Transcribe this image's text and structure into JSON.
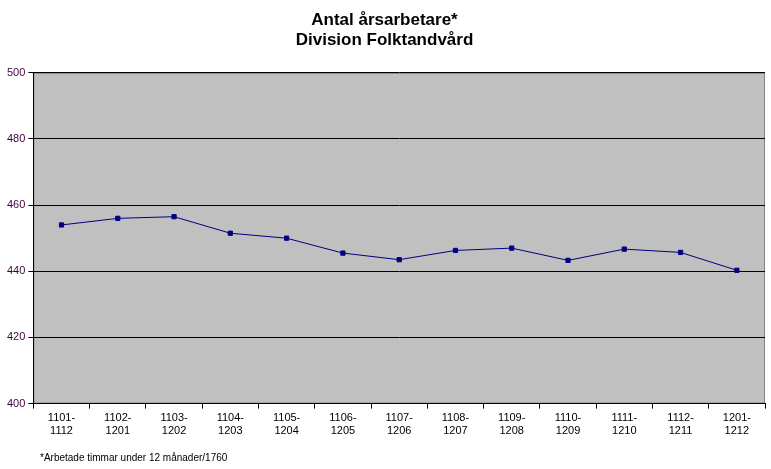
{
  "chart_data": {
    "type": "line",
    "title": "Antal årsarbetare*",
    "subtitle": "Division Folktandvård",
    "categories": [
      "1101-1112",
      "1102-1201",
      "1103-1202",
      "1104-1203",
      "1105-1204",
      "1106-1205",
      "1107-1206",
      "1108-1207",
      "1109-1208",
      "1110-1209",
      "1111-1210",
      "1112-1211",
      "1201-1212"
    ],
    "values": [
      454,
      456,
      456.5,
      451.5,
      450,
      445.5,
      443.5,
      446.3,
      447,
      443.3,
      446.7,
      445.7,
      440.3
    ],
    "color": "#000080",
    "marker": "square",
    "line_style": "solid",
    "ylim": [
      400,
      500
    ],
    "yticks": [
      400,
      420,
      440,
      460,
      480,
      500
    ],
    "grid": true,
    "annotations": [
      "*Arbetade timmar under 12 månader/1760"
    ]
  }
}
